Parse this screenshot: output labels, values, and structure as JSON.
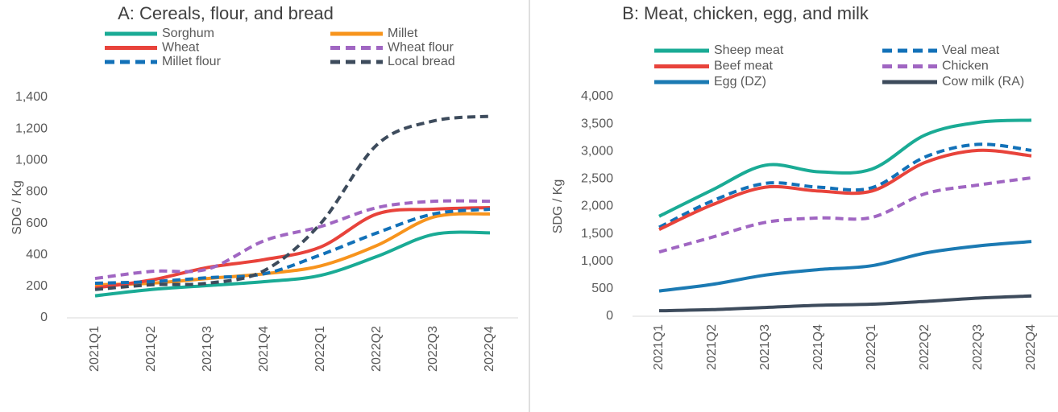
{
  "chart_data": [
    {
      "type": "line",
      "title": "A: Cereals, flour, and bread",
      "y_label": "SDG / Kg",
      "categories": [
        "2021Q1",
        "2021Q2",
        "2021Q3",
        "2021Q4",
        "2022Q1",
        "2022Q2",
        "2022Q3",
        "2022Q4"
      ],
      "ylim": [
        0,
        1400
      ],
      "yticks": [
        0,
        200,
        400,
        600,
        800,
        {
          "value": 1000,
          "label": "1,000"
        },
        {
          "value": 1200,
          "label": "1,200"
        },
        {
          "value": 1400,
          "label": "1,400"
        }
      ],
      "grid": false,
      "smooth": true,
      "series": [
        {
          "name": "Sorghum",
          "color": "#1aab95",
          "dashed": false,
          "values": [
            140,
            180,
            205,
            230,
            270,
            390,
            530,
            540
          ]
        },
        {
          "name": "Millet",
          "color": "#f7941d",
          "dashed": false,
          "values": [
            210,
            220,
            250,
            280,
            330,
            460,
            640,
            660
          ]
        },
        {
          "name": "Wheat",
          "color": "#e8433b",
          "dashed": false,
          "values": [
            190,
            240,
            320,
            370,
            450,
            660,
            690,
            700
          ]
        },
        {
          "name": "Wheat flour",
          "color": "#a066c2",
          "dashed": true,
          "values": [
            250,
            295,
            310,
            490,
            580,
            700,
            740,
            740
          ]
        },
        {
          "name": "Millet flour",
          "color": "#1271b8",
          "dashed": true,
          "values": [
            220,
            230,
            255,
            280,
            400,
            540,
            660,
            690
          ]
        },
        {
          "name": "Local bread",
          "color": "#3d4b5c",
          "dashed": true,
          "values": [
            180,
            210,
            220,
            300,
            600,
            1100,
            1250,
            1280
          ]
        }
      ]
    },
    {
      "type": "line",
      "title": "B:  Meat, chicken, egg, and milk",
      "y_label": "SDG / Kg",
      "categories": [
        "2021Q1",
        "2021Q2",
        "2021Q3",
        "2021Q4",
        "2022Q1",
        "2022Q2",
        "2022Q3",
        "2022Q4"
      ],
      "ylim": [
        0,
        4000
      ],
      "yticks": [
        0,
        500,
        {
          "value": 1000,
          "label": "1,000"
        },
        {
          "value": 1500,
          "label": "1,500"
        },
        {
          "value": 2000,
          "label": "2,000"
        },
        {
          "value": 2500,
          "label": "2,500"
        },
        {
          "value": 3000,
          "label": "3,000"
        },
        {
          "value": 3500,
          "label": "3,500"
        },
        {
          "value": 4000,
          "label": "4,000"
        }
      ],
      "grid": false,
      "smooth": true,
      "series": [
        {
          "name": "Sheep meat",
          "color": "#1aab95",
          "dashed": false,
          "values": [
            1820,
            2300,
            2750,
            2630,
            2680,
            3300,
            3530,
            3570
          ]
        },
        {
          "name": "Veal meat",
          "color": "#1271b8",
          "dashed": true,
          "values": [
            1620,
            2100,
            2420,
            2350,
            2340,
            2900,
            3130,
            3020
          ]
        },
        {
          "name": "Beef meat",
          "color": "#e8433b",
          "dashed": false,
          "values": [
            1580,
            2030,
            2350,
            2280,
            2280,
            2800,
            3020,
            2920
          ]
        },
        {
          "name": "Chicken",
          "color": "#a066c2",
          "dashed": true,
          "values": [
            1170,
            1440,
            1710,
            1790,
            1800,
            2230,
            2390,
            2520
          ]
        },
        {
          "name": "Egg (DZ)",
          "color": "#1b7ab3",
          "dashed": false,
          "values": [
            460,
            580,
            750,
            850,
            920,
            1150,
            1280,
            1360
          ]
        },
        {
          "name": "Cow milk (RA)",
          "color": "#3d4b5c",
          "dashed": false,
          "values": [
            100,
            120,
            160,
            200,
            220,
            270,
            330,
            370
          ]
        }
      ]
    }
  ]
}
